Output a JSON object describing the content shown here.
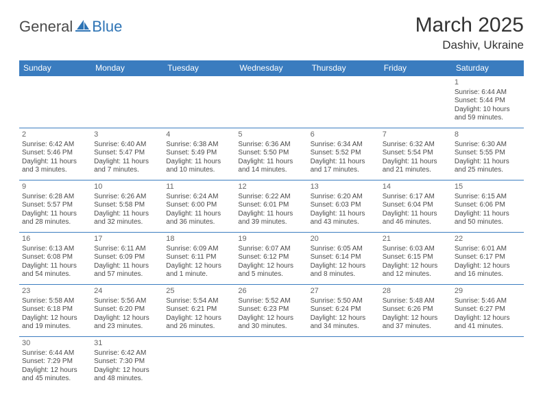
{
  "brand": {
    "general": "General",
    "blue": "Blue"
  },
  "header": {
    "title": "March 2025",
    "location": "Dashiv, Ukraine"
  },
  "colors": {
    "header_bg": "#3a7cbf",
    "header_text": "#ffffff",
    "border": "#3a7cbf",
    "logo_blue": "#2e74b5"
  },
  "weekdays": [
    "Sunday",
    "Monday",
    "Tuesday",
    "Wednesday",
    "Thursday",
    "Friday",
    "Saturday"
  ],
  "weeks": [
    [
      null,
      null,
      null,
      null,
      null,
      null,
      {
        "day": "1",
        "sunrise": "Sunrise: 6:44 AM",
        "sunset": "Sunset: 5:44 PM",
        "daylight": "Daylight: 10 hours and 59 minutes."
      }
    ],
    [
      {
        "day": "2",
        "sunrise": "Sunrise: 6:42 AM",
        "sunset": "Sunset: 5:46 PM",
        "daylight": "Daylight: 11 hours and 3 minutes."
      },
      {
        "day": "3",
        "sunrise": "Sunrise: 6:40 AM",
        "sunset": "Sunset: 5:47 PM",
        "daylight": "Daylight: 11 hours and 7 minutes."
      },
      {
        "day": "4",
        "sunrise": "Sunrise: 6:38 AM",
        "sunset": "Sunset: 5:49 PM",
        "daylight": "Daylight: 11 hours and 10 minutes."
      },
      {
        "day": "5",
        "sunrise": "Sunrise: 6:36 AM",
        "sunset": "Sunset: 5:50 PM",
        "daylight": "Daylight: 11 hours and 14 minutes."
      },
      {
        "day": "6",
        "sunrise": "Sunrise: 6:34 AM",
        "sunset": "Sunset: 5:52 PM",
        "daylight": "Daylight: 11 hours and 17 minutes."
      },
      {
        "day": "7",
        "sunrise": "Sunrise: 6:32 AM",
        "sunset": "Sunset: 5:54 PM",
        "daylight": "Daylight: 11 hours and 21 minutes."
      },
      {
        "day": "8",
        "sunrise": "Sunrise: 6:30 AM",
        "sunset": "Sunset: 5:55 PM",
        "daylight": "Daylight: 11 hours and 25 minutes."
      }
    ],
    [
      {
        "day": "9",
        "sunrise": "Sunrise: 6:28 AM",
        "sunset": "Sunset: 5:57 PM",
        "daylight": "Daylight: 11 hours and 28 minutes."
      },
      {
        "day": "10",
        "sunrise": "Sunrise: 6:26 AM",
        "sunset": "Sunset: 5:58 PM",
        "daylight": "Daylight: 11 hours and 32 minutes."
      },
      {
        "day": "11",
        "sunrise": "Sunrise: 6:24 AM",
        "sunset": "Sunset: 6:00 PM",
        "daylight": "Daylight: 11 hours and 36 minutes."
      },
      {
        "day": "12",
        "sunrise": "Sunrise: 6:22 AM",
        "sunset": "Sunset: 6:01 PM",
        "daylight": "Daylight: 11 hours and 39 minutes."
      },
      {
        "day": "13",
        "sunrise": "Sunrise: 6:20 AM",
        "sunset": "Sunset: 6:03 PM",
        "daylight": "Daylight: 11 hours and 43 minutes."
      },
      {
        "day": "14",
        "sunrise": "Sunrise: 6:17 AM",
        "sunset": "Sunset: 6:04 PM",
        "daylight": "Daylight: 11 hours and 46 minutes."
      },
      {
        "day": "15",
        "sunrise": "Sunrise: 6:15 AM",
        "sunset": "Sunset: 6:06 PM",
        "daylight": "Daylight: 11 hours and 50 minutes."
      }
    ],
    [
      {
        "day": "16",
        "sunrise": "Sunrise: 6:13 AM",
        "sunset": "Sunset: 6:08 PM",
        "daylight": "Daylight: 11 hours and 54 minutes."
      },
      {
        "day": "17",
        "sunrise": "Sunrise: 6:11 AM",
        "sunset": "Sunset: 6:09 PM",
        "daylight": "Daylight: 11 hours and 57 minutes."
      },
      {
        "day": "18",
        "sunrise": "Sunrise: 6:09 AM",
        "sunset": "Sunset: 6:11 PM",
        "daylight": "Daylight: 12 hours and 1 minute."
      },
      {
        "day": "19",
        "sunrise": "Sunrise: 6:07 AM",
        "sunset": "Sunset: 6:12 PM",
        "daylight": "Daylight: 12 hours and 5 minutes."
      },
      {
        "day": "20",
        "sunrise": "Sunrise: 6:05 AM",
        "sunset": "Sunset: 6:14 PM",
        "daylight": "Daylight: 12 hours and 8 minutes."
      },
      {
        "day": "21",
        "sunrise": "Sunrise: 6:03 AM",
        "sunset": "Sunset: 6:15 PM",
        "daylight": "Daylight: 12 hours and 12 minutes."
      },
      {
        "day": "22",
        "sunrise": "Sunrise: 6:01 AM",
        "sunset": "Sunset: 6:17 PM",
        "daylight": "Daylight: 12 hours and 16 minutes."
      }
    ],
    [
      {
        "day": "23",
        "sunrise": "Sunrise: 5:58 AM",
        "sunset": "Sunset: 6:18 PM",
        "daylight": "Daylight: 12 hours and 19 minutes."
      },
      {
        "day": "24",
        "sunrise": "Sunrise: 5:56 AM",
        "sunset": "Sunset: 6:20 PM",
        "daylight": "Daylight: 12 hours and 23 minutes."
      },
      {
        "day": "25",
        "sunrise": "Sunrise: 5:54 AM",
        "sunset": "Sunset: 6:21 PM",
        "daylight": "Daylight: 12 hours and 26 minutes."
      },
      {
        "day": "26",
        "sunrise": "Sunrise: 5:52 AM",
        "sunset": "Sunset: 6:23 PM",
        "daylight": "Daylight: 12 hours and 30 minutes."
      },
      {
        "day": "27",
        "sunrise": "Sunrise: 5:50 AM",
        "sunset": "Sunset: 6:24 PM",
        "daylight": "Daylight: 12 hours and 34 minutes."
      },
      {
        "day": "28",
        "sunrise": "Sunrise: 5:48 AM",
        "sunset": "Sunset: 6:26 PM",
        "daylight": "Daylight: 12 hours and 37 minutes."
      },
      {
        "day": "29",
        "sunrise": "Sunrise: 5:46 AM",
        "sunset": "Sunset: 6:27 PM",
        "daylight": "Daylight: 12 hours and 41 minutes."
      }
    ],
    [
      {
        "day": "30",
        "sunrise": "Sunrise: 6:44 AM",
        "sunset": "Sunset: 7:29 PM",
        "daylight": "Daylight: 12 hours and 45 minutes."
      },
      {
        "day": "31",
        "sunrise": "Sunrise: 6:42 AM",
        "sunset": "Sunset: 7:30 PM",
        "daylight": "Daylight: 12 hours and 48 minutes."
      },
      null,
      null,
      null,
      null,
      null
    ]
  ]
}
